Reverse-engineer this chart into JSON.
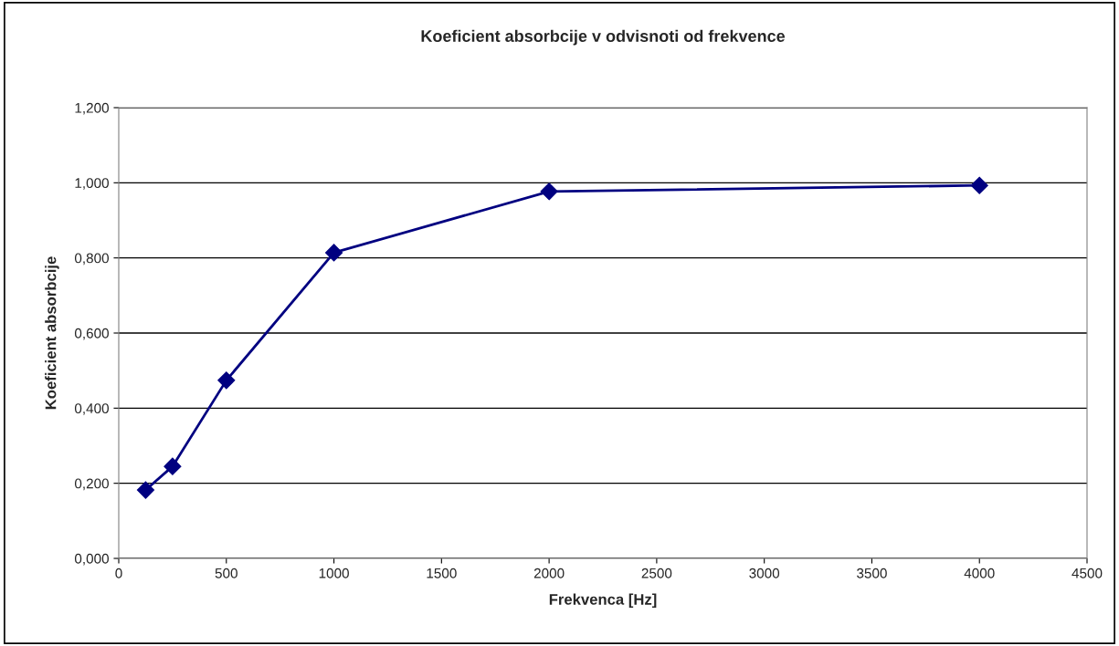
{
  "chart_data": {
    "type": "line",
    "title": "Koeficient absorbcije v odvisnoti od frekvence",
    "xlabel": "Frekvenca [Hz]",
    "ylabel": "Koeficient absorbcije",
    "x": [
      125,
      250,
      500,
      1000,
      2000,
      4000
    ],
    "series": [
      {
        "color": "#000080",
        "values": [
          0.182,
          0.245,
          0.474,
          0.814,
          0.977,
          0.993
        ]
      }
    ],
    "xlim": [
      0,
      4500
    ],
    "xticks": [
      0,
      500,
      1000,
      1500,
      2000,
      2500,
      3000,
      3500,
      4000,
      4500
    ],
    "ylim": [
      0,
      1.2
    ],
    "yticks": [
      {
        "value": 0,
        "label": "0,000"
      },
      {
        "value": 0.2,
        "label": "0,200"
      },
      {
        "value": 0.4,
        "label": "0,400"
      },
      {
        "value": 0.6,
        "label": "0,600"
      },
      {
        "value": 0.8,
        "label": "0,800"
      },
      {
        "value": 1.0,
        "label": "1,000"
      },
      {
        "value": 1.2,
        "label": "1,200"
      }
    ],
    "grid": "y",
    "legend": false,
    "marker": "diamond",
    "line_style": "solid"
  }
}
